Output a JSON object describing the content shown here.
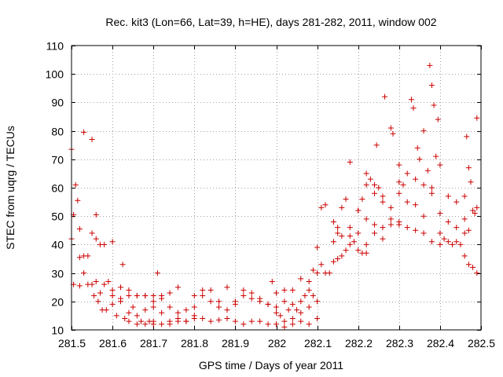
{
  "chart_data": {
    "type": "scatter",
    "title": "Rec. kit3 (Lon=66, Lat=39, h=HE), days 281-282, 2011, window 002",
    "xlabel": "GPS time / Days of year 2011",
    "ylabel": "STEC from uqrg / TECUs",
    "xlim": [
      281.5,
      282.5
    ],
    "ylim": [
      10,
      110
    ],
    "xticks": [
      281.5,
      281.6,
      281.7,
      281.8,
      281.9,
      282.0,
      282.1,
      282.2,
      282.3,
      282.4,
      282.5
    ],
    "xtick_labels": [
      "281.5",
      "281.6",
      "281.7",
      "281.8",
      "281.9",
      "282",
      "282.1",
      "282.2",
      "282.3",
      "282.4",
      "282.5"
    ],
    "yticks": [
      10,
      20,
      30,
      40,
      50,
      60,
      70,
      80,
      90,
      100,
      110
    ],
    "ytick_labels": [
      "10",
      "20",
      "30",
      "40",
      "50",
      "60",
      "70",
      "80",
      "90",
      "100",
      "110"
    ],
    "grid": true,
    "marker": "plus",
    "color": "#cc0000",
    "series": [
      {
        "name": "STEC",
        "points": [
          [
            281.5,
            73.5
          ],
          [
            281.505,
            50.5
          ],
          [
            281.51,
            61
          ],
          [
            281.515,
            55.5
          ],
          [
            281.52,
            45.5
          ],
          [
            281.53,
            79.5
          ],
          [
            281.55,
            77
          ],
          [
            281.56,
            50.5
          ],
          [
            281.5,
            42
          ],
          [
            281.52,
            35.5
          ],
          [
            281.53,
            36
          ],
          [
            281.54,
            36
          ],
          [
            281.55,
            44
          ],
          [
            281.56,
            42
          ],
          [
            281.57,
            40
          ],
          [
            281.58,
            40
          ],
          [
            281.6,
            41
          ],
          [
            281.505,
            26
          ],
          [
            281.52,
            25.5
          ],
          [
            281.53,
            30
          ],
          [
            281.54,
            26
          ],
          [
            281.55,
            26
          ],
          [
            281.56,
            27
          ],
          [
            281.57,
            23
          ],
          [
            281.58,
            26
          ],
          [
            281.59,
            27
          ],
          [
            281.6,
            24
          ],
          [
            281.625,
            33
          ],
          [
            281.555,
            22
          ],
          [
            281.565,
            20
          ],
          [
            281.575,
            17
          ],
          [
            281.585,
            17
          ],
          [
            281.6,
            19
          ],
          [
            281.61,
            15
          ],
          [
            281.62,
            20
          ],
          [
            281.63,
            14
          ],
          [
            281.64,
            16
          ],
          [
            281.65,
            18
          ],
          [
            281.66,
            15
          ],
          [
            281.67,
            13
          ],
          [
            281.68,
            17
          ],
          [
            281.69,
            13
          ],
          [
            281.7,
            12
          ],
          [
            281.6,
            22
          ],
          [
            281.62,
            21
          ],
          [
            281.64,
            22
          ],
          [
            281.66,
            22
          ],
          [
            281.68,
            22
          ],
          [
            281.7,
            18
          ],
          [
            281.72,
            16
          ],
          [
            281.74,
            13
          ],
          [
            281.76,
            14
          ],
          [
            281.78,
            13
          ],
          [
            281.8,
            15
          ],
          [
            281.82,
            14
          ],
          [
            281.84,
            13
          ],
          [
            281.86,
            13.5
          ],
          [
            281.88,
            14
          ],
          [
            281.64,
            13
          ],
          [
            281.66,
            12
          ],
          [
            281.68,
            12
          ],
          [
            281.7,
            13
          ],
          [
            281.72,
            12
          ],
          [
            281.74,
            12
          ],
          [
            281.76,
            13
          ],
          [
            281.78,
            13
          ],
          [
            281.8,
            14
          ],
          [
            281.7,
            22
          ],
          [
            281.71,
            30
          ],
          [
            281.72,
            21
          ],
          [
            281.74,
            18
          ],
          [
            281.76,
            16
          ],
          [
            281.78,
            17
          ],
          [
            281.8,
            18
          ],
          [
            281.82,
            22
          ],
          [
            281.84,
            24
          ],
          [
            281.86,
            20
          ],
          [
            281.88,
            17
          ],
          [
            281.62,
            25
          ],
          [
            281.64,
            24
          ],
          [
            281.66,
            22
          ],
          [
            281.68,
            22
          ],
          [
            281.7,
            20
          ],
          [
            281.72,
            22
          ],
          [
            281.74,
            23
          ],
          [
            281.76,
            25
          ],
          [
            281.8,
            22
          ],
          [
            281.82,
            24
          ],
          [
            281.84,
            20
          ],
          [
            281.86,
            18
          ],
          [
            281.88,
            25
          ],
          [
            281.9,
            19
          ],
          [
            281.9,
            13
          ],
          [
            281.92,
            12
          ],
          [
            281.94,
            13
          ],
          [
            281.96,
            13
          ],
          [
            281.98,
            12
          ],
          [
            282.0,
            12
          ],
          [
            282.02,
            11
          ],
          [
            282.04,
            12
          ],
          [
            282.06,
            13
          ],
          [
            282.08,
            12
          ],
          [
            282.1,
            14
          ],
          [
            281.9,
            20
          ],
          [
            281.92,
            22
          ],
          [
            281.94,
            21
          ],
          [
            281.96,
            20
          ],
          [
            281.98,
            19
          ],
          [
            282.0,
            18
          ],
          [
            282.02,
            20
          ],
          [
            282.04,
            19
          ],
          [
            282.06,
            16
          ],
          [
            282.08,
            18
          ],
          [
            282.1,
            20
          ],
          [
            281.92,
            24
          ],
          [
            281.94,
            23
          ],
          [
            281.96,
            21
          ],
          [
            281.98,
            19
          ],
          [
            281.99,
            27
          ],
          [
            282.0,
            23
          ],
          [
            282.02,
            24
          ],
          [
            282.04,
            24
          ],
          [
            282.06,
            28
          ],
          [
            282.08,
            27
          ],
          [
            282.1,
            30
          ],
          [
            282.0,
            16
          ],
          [
            282.01,
            15
          ],
          [
            282.02,
            13
          ],
          [
            282.03,
            17
          ],
          [
            282.04,
            14
          ],
          [
            282.05,
            17
          ],
          [
            282.06,
            20
          ],
          [
            282.07,
            22
          ],
          [
            282.08,
            24
          ],
          [
            282.09,
            22
          ],
          [
            282.09,
            31
          ],
          [
            282.1,
            39
          ],
          [
            282.11,
            33
          ],
          [
            282.12,
            30
          ],
          [
            282.13,
            30
          ],
          [
            282.14,
            34
          ],
          [
            282.15,
            35
          ],
          [
            282.16,
            36
          ],
          [
            282.17,
            38
          ],
          [
            282.18,
            40
          ],
          [
            282.2,
            44
          ],
          [
            282.11,
            53
          ],
          [
            282.12,
            54
          ],
          [
            282.14,
            48
          ],
          [
            282.15,
            46
          ],
          [
            282.16,
            53
          ],
          [
            282.17,
            56
          ],
          [
            282.18,
            46
          ],
          [
            282.19,
            41
          ],
          [
            282.2,
            38
          ],
          [
            282.21,
            37
          ],
          [
            282.22,
            37
          ],
          [
            282.14,
            41
          ],
          [
            282.15,
            44
          ],
          [
            282.16,
            43
          ],
          [
            282.18,
            43
          ],
          [
            282.2,
            52
          ],
          [
            282.22,
            49
          ],
          [
            282.24,
            47
          ],
          [
            282.26,
            46
          ],
          [
            282.28,
            49
          ],
          [
            282.3,
            48
          ],
          [
            282.18,
            69
          ],
          [
            282.2,
            52
          ],
          [
            282.22,
            65
          ],
          [
            282.23,
            63
          ],
          [
            282.24,
            61
          ],
          [
            282.245,
            75
          ],
          [
            282.26,
            57
          ],
          [
            282.265,
            92
          ],
          [
            282.28,
            81
          ],
          [
            282.285,
            79
          ],
          [
            282.3,
            68
          ],
          [
            282.31,
            61
          ],
          [
            282.21,
            56
          ],
          [
            282.22,
            61
          ],
          [
            282.24,
            58
          ],
          [
            282.25,
            60
          ],
          [
            282.26,
            55
          ],
          [
            282.28,
            53
          ],
          [
            282.3,
            58
          ],
          [
            282.32,
            55
          ],
          [
            282.34,
            54
          ],
          [
            282.36,
            50
          ],
          [
            282.22,
            40
          ],
          [
            282.24,
            44
          ],
          [
            282.26,
            42
          ],
          [
            282.28,
            47
          ],
          [
            282.3,
            47
          ],
          [
            282.32,
            46
          ],
          [
            282.34,
            45
          ],
          [
            282.36,
            44
          ],
          [
            282.38,
            41
          ],
          [
            282.4,
            40
          ],
          [
            282.33,
            91
          ],
          [
            282.335,
            88
          ],
          [
            282.345,
            74
          ],
          [
            282.35,
            70
          ],
          [
            282.36,
            80
          ],
          [
            282.37,
            66
          ],
          [
            282.375,
            103
          ],
          [
            282.38,
            96
          ],
          [
            282.385,
            89
          ],
          [
            282.39,
            71
          ],
          [
            282.395,
            84
          ],
          [
            282.3,
            62
          ],
          [
            282.32,
            65
          ],
          [
            282.34,
            63
          ],
          [
            282.36,
            61
          ],
          [
            282.38,
            60
          ],
          [
            282.4,
            68
          ],
          [
            282.42,
            57
          ],
          [
            282.44,
            55
          ],
          [
            282.46,
            57
          ],
          [
            282.47,
            67
          ],
          [
            282.38,
            58
          ],
          [
            282.4,
            51
          ],
          [
            282.42,
            48
          ],
          [
            282.44,
            46
          ],
          [
            282.46,
            49
          ],
          [
            282.48,
            52
          ],
          [
            282.49,
            53
          ],
          [
            282.4,
            44
          ],
          [
            282.41,
            42
          ],
          [
            282.42,
            41
          ],
          [
            282.43,
            40
          ],
          [
            282.44,
            41
          ],
          [
            282.45,
            40
          ],
          [
            282.46,
            36
          ],
          [
            282.47,
            33
          ],
          [
            282.48,
            32
          ],
          [
            282.49,
            30
          ],
          [
            282.465,
            78
          ],
          [
            282.475,
            62
          ],
          [
            282.485,
            51
          ],
          [
            282.49,
            84.5
          ],
          [
            282.46,
            44
          ],
          [
            282.47,
            45
          ]
        ]
      }
    ]
  }
}
